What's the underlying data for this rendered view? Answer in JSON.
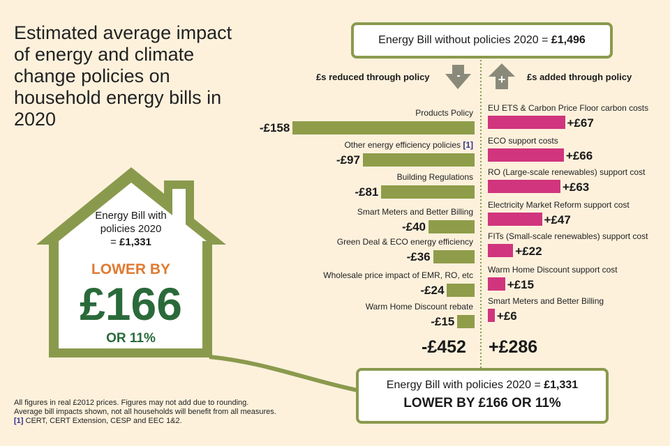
{
  "title": "Estimated average impact of energy and climate change policies on household energy bills in 2020",
  "top_box": {
    "text": "Energy Bill without policies 2020 = ",
    "amount": "£1,496"
  },
  "headers": {
    "reduced": "£s reduced through policy",
    "added": "£s added through policy",
    "minus_symbol": "-",
    "plus_symbol": "+"
  },
  "house": {
    "line1": "Energy Bill with",
    "line2": "policies 2020",
    "line3_prefix": "= ",
    "line3_amount": "£1,331",
    "lower_by": "LOWER BY",
    "amount": "£166",
    "percent": "OR 11%"
  },
  "bottom_box": {
    "line1": "Energy Bill with policies 2020 = ",
    "line1_amount": "£1,331",
    "line2": "LOWER BY £166 OR 11%"
  },
  "footnote": {
    "line1": "All figures in real £2012 prices. Figures may not add due to rounding.",
    "line2": "Average bill impacts shown, not all households will benefit from all measures.",
    "ref": "[1]",
    "line3": " CERT, CERT Extension, CESP and EEC 1&2."
  },
  "colors": {
    "reduced": "#8f9d4a",
    "added": "#d0357e",
    "border": "#8a9a4d"
  },
  "chart_data": {
    "type": "bar",
    "title": "Estimated average impact of energy and climate change policies on household energy bills in 2020",
    "unit": "£",
    "reduced": [
      {
        "label": "Products Policy",
        "display": "-£158",
        "value": -158
      },
      {
        "label": "Other energy efficiency policies",
        "ref": "[1]",
        "display": "-£97",
        "value": -97
      },
      {
        "label": "Building Regulations",
        "display": "-£81",
        "value": -81
      },
      {
        "label": "Smart Meters and Better Billing",
        "display": "-£40",
        "value": -40
      },
      {
        "label": "Green Deal & ECO energy efficiency",
        "display": "-£36",
        "value": -36
      },
      {
        "label": "Wholesale price impact of EMR, RO, etc",
        "display": "-£24",
        "value": -24
      },
      {
        "label": "Warm Home Discount rebate",
        "display": "-£15",
        "value": -15
      }
    ],
    "added": [
      {
        "label": "EU ETS & Carbon Price Floor carbon costs",
        "display": "+£67",
        "value": 67
      },
      {
        "label": "ECO support costs",
        "display": "+£66",
        "value": 66
      },
      {
        "label": "RO (Large-scale renewables) support cost",
        "display": "+£63",
        "value": 63
      },
      {
        "label": "Electricity Market Reform support cost",
        "display": "+£47",
        "value": 47
      },
      {
        "label": "FITs (Small-scale renewables) support cost",
        "display": "+£22",
        "value": 22
      },
      {
        "label": "Warm Home Discount support cost",
        "display": "+£15",
        "value": 15
      },
      {
        "label": "Smart Meters and Better Billing",
        "display": "+£6",
        "value": 6
      }
    ],
    "totals": {
      "reduced": "-£452",
      "added": "+£286",
      "reduced_value": -452,
      "added_value": 286
    }
  }
}
